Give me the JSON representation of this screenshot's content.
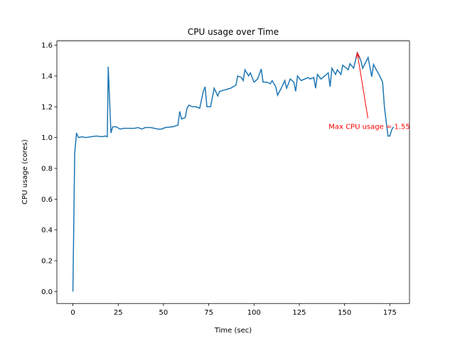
{
  "chart_data": {
    "type": "line",
    "title": "CPU usage over Time",
    "xlabel": "Time (sec)",
    "ylabel": "CPU usage (cores)",
    "x": [
      0,
      1,
      2,
      3,
      5,
      7,
      10,
      13,
      16,
      18,
      19,
      19.5,
      21,
      22,
      24,
      26,
      28,
      31,
      34,
      36,
      38,
      40,
      43,
      45,
      47,
      49,
      51,
      55,
      58,
      59,
      60,
      62,
      63,
      64,
      66,
      68,
      70,
      72,
      73,
      74,
      76,
      78,
      80,
      81,
      87,
      90,
      91,
      93,
      94,
      95,
      97,
      98,
      100,
      102,
      104,
      105,
      107,
      109,
      110,
      112,
      113,
      115,
      117,
      118,
      120,
      122,
      123,
      124,
      126,
      128,
      130,
      131,
      133,
      134,
      135,
      137,
      139,
      141,
      142,
      143,
      145,
      146,
      148,
      149,
      151,
      152,
      153,
      155,
      157,
      159,
      160,
      163,
      165,
      166,
      168,
      169,
      171,
      172,
      173,
      174,
      175,
      176,
      177
    ],
    "series": [
      {
        "name": "CPU usage",
        "color": "#1f77b4",
        "values": [
          0,
          0.9,
          1.03,
          1.0,
          1.005,
          1.0,
          1.005,
          1.01,
          1.005,
          1.01,
          1.005,
          1.46,
          1.03,
          1.07,
          1.07,
          1.055,
          1.06,
          1.06,
          1.06,
          1.065,
          1.055,
          1.065,
          1.065,
          1.06,
          1.055,
          1.055,
          1.065,
          1.07,
          1.08,
          1.17,
          1.12,
          1.13,
          1.19,
          1.21,
          1.2,
          1.2,
          1.19,
          1.3,
          1.33,
          1.2,
          1.2,
          1.32,
          1.27,
          1.3,
          1.32,
          1.34,
          1.4,
          1.39,
          1.37,
          1.44,
          1.4,
          1.42,
          1.36,
          1.38,
          1.445,
          1.36,
          1.36,
          1.35,
          1.37,
          1.33,
          1.275,
          1.32,
          1.37,
          1.32,
          1.38,
          1.36,
          1.3,
          1.4,
          1.37,
          1.38,
          1.39,
          1.38,
          1.39,
          1.32,
          1.41,
          1.38,
          1.4,
          1.42,
          1.33,
          1.45,
          1.41,
          1.44,
          1.41,
          1.47,
          1.45,
          1.44,
          1.48,
          1.45,
          1.55,
          1.5,
          1.45,
          1.52,
          1.395,
          1.475,
          1.43,
          1.41,
          1.36,
          1.2,
          1.1,
          1.01,
          1.01,
          1.05,
          1.07
        ]
      }
    ],
    "xlim": [
      -8.85,
      185.85
    ],
    "ylim": [
      -0.0775,
      1.6275
    ],
    "xticks": [
      0,
      25,
      50,
      75,
      100,
      125,
      150,
      175
    ],
    "yticks": [
      {
        "value": 0,
        "label": "0.0"
      },
      {
        "value": 0.2,
        "label": "0.2"
      },
      {
        "value": 0.4,
        "label": "0.4"
      },
      {
        "value": 0.6,
        "label": "0.6"
      },
      {
        "value": 0.8,
        "label": "0.8"
      },
      {
        "value": 1,
        "label": "1.0"
      },
      {
        "value": 1.2,
        "label": "1.2"
      },
      {
        "value": 1.4,
        "label": "1.4"
      },
      {
        "value": 1.6,
        "label": "1.6"
      }
    ],
    "annotation": {
      "text": "Max CPU usage = 1.55",
      "color": "red"
    }
  }
}
